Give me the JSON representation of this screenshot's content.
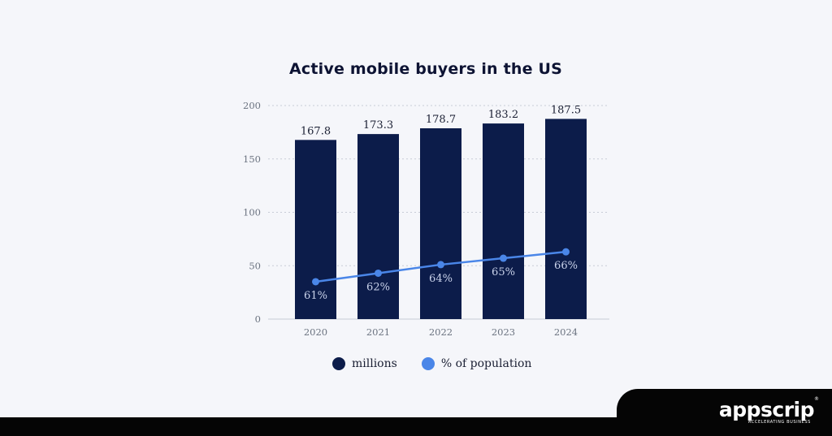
{
  "chart_data": {
    "type": "bar",
    "title": "Active mobile buyers in the US",
    "categories": [
      "2020",
      "2021",
      "2022",
      "2023",
      "2024"
    ],
    "ylim": [
      0,
      200
    ],
    "yticks": [
      "0",
      "50",
      "100",
      "150",
      "200"
    ],
    "grid": true,
    "series": [
      {
        "name": "millions",
        "type": "bar",
        "color": "#0c1c4a",
        "values": [
          167.8,
          173.3,
          178.7,
          183.2,
          187.5
        ],
        "labels": [
          "167.8",
          "173.3",
          "178.7",
          "183.2",
          "187.5"
        ]
      },
      {
        "name": "% of population",
        "type": "line",
        "color": "#4a86e8",
        "values": [
          61,
          62,
          64,
          65,
          66
        ],
        "plotted_on_axis_as": [
          35,
          43,
          51,
          57,
          63
        ],
        "labels": [
          "61%",
          "62%",
          "64%",
          "65%",
          "66%"
        ]
      }
    ],
    "legend_position": "bottom"
  },
  "brand": {
    "name": "appscrip",
    "tagline": "ACCELERATING BUSINESS",
    "reg": "®"
  }
}
